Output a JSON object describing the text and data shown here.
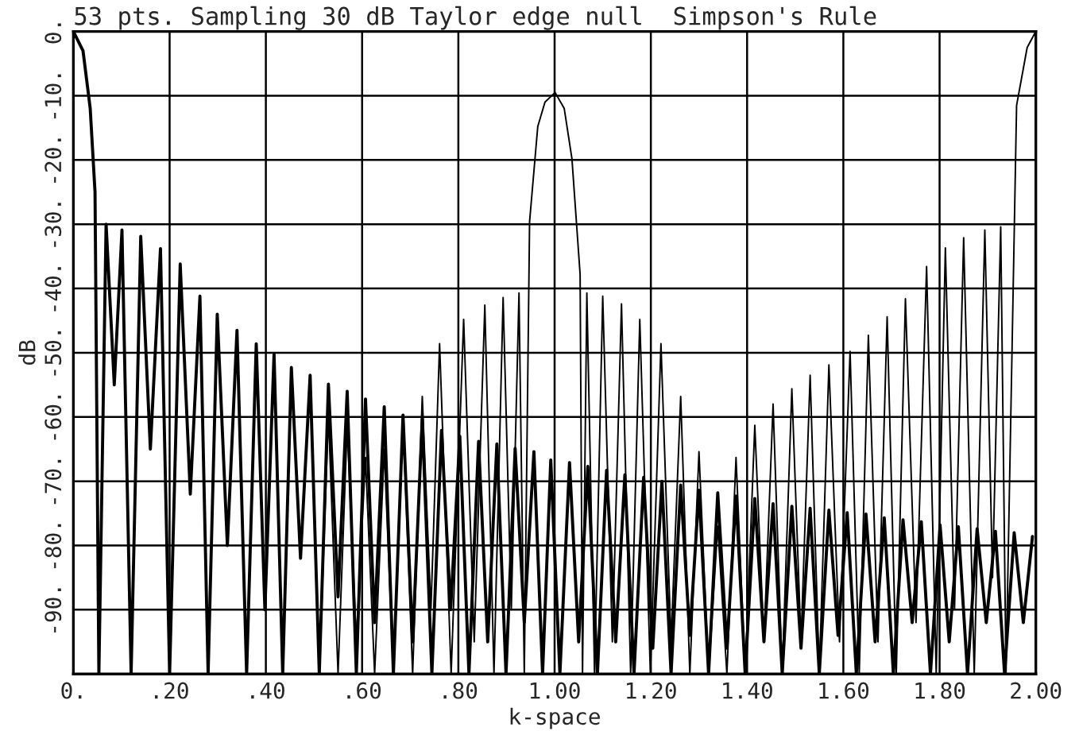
{
  "chart_data": {
    "type": "line",
    "title": "53 pts. Sampling 30 dB Taylor edge null  Simpson's Rule",
    "xlabel": "k-space",
    "ylabel": "dB",
    "xlim": [
      0,
      2
    ],
    "ylim": [
      -100,
      0
    ],
    "xticks": [
      {
        "value": 0,
        "label": "0."
      },
      {
        "value": 0.2,
        "label": ".20"
      },
      {
        "value": 0.4,
        "label": ".40"
      },
      {
        "value": 0.6,
        "label": ".60"
      },
      {
        "value": 0.8,
        "label": ".80"
      },
      {
        "value": 1.0,
        "label": "1.00"
      },
      {
        "value": 1.2,
        "label": "1.20"
      },
      {
        "value": 1.4,
        "label": "1.40"
      },
      {
        "value": 1.6,
        "label": "1.60"
      },
      {
        "value": 1.8,
        "label": "1.80"
      },
      {
        "value": 2.0,
        "label": "2.00"
      }
    ],
    "yticks": [
      {
        "value": 0,
        "label": "0."
      },
      {
        "value": -10,
        "label": "-10."
      },
      {
        "value": -20,
        "label": "-20."
      },
      {
        "value": -30,
        "label": "-30."
      },
      {
        "value": -40,
        "label": "-40."
      },
      {
        "value": -50,
        "label": "-50."
      },
      {
        "value": -60,
        "label": "-60."
      },
      {
        "value": -70,
        "label": "-70."
      },
      {
        "value": -80,
        "label": "-80."
      },
      {
        "value": -90,
        "label": "-90."
      },
      {
        "value": -100,
        "label": null
      }
    ],
    "grid": true,
    "marker": "none",
    "line_style": "solid",
    "legend": false,
    "series": [
      {
        "color": "#000000",
        "x": [
          0,
          0.02,
          0.035,
          0.045,
          0.053,
          0.068,
          0.085,
          0.101,
          0.12,
          0.14,
          0.16,
          0.181,
          0.2,
          0.222,
          0.243,
          0.263,
          0.28,
          0.299,
          0.32,
          0.34,
          0.36,
          0.38,
          0.398,
          0.417,
          0.435,
          0.453,
          0.472,
          0.492,
          0.511,
          0.53,
          0.55,
          0.569,
          0.588,
          0.607,
          0.626,
          0.646,
          0.665,
          0.685,
          0.705,
          0.725,
          0.745,
          0.765,
          0.784,
          0.803,
          0.822,
          0.842,
          0.861,
          0.88,
          0.899,
          0.918,
          0.937,
          0.957,
          0.975,
          0.992,
          1.011,
          1.031,
          1.05,
          1.069,
          1.089,
          1.108,
          1.127,
          1.146,
          1.165,
          1.185,
          1.204,
          1.223,
          1.242,
          1.262,
          1.281,
          1.3,
          1.32,
          1.339,
          1.358,
          1.377,
          1.396,
          1.416,
          1.435,
          1.454,
          1.473,
          1.493,
          1.512,
          1.531,
          1.55,
          1.57,
          1.589,
          1.608,
          1.627,
          1.647,
          1.666,
          1.685,
          1.704,
          1.724,
          1.743,
          1.762,
          1.781,
          1.801,
          1.82,
          1.839,
          1.858,
          1.878,
          1.897,
          1.916,
          1.935,
          1.955,
          1.974,
          1.993
        ],
        "values": [
          0,
          -3,
          -12,
          -25,
          -100,
          -30.0,
          -55,
          -30.9,
          -100,
          -31.9,
          -65,
          -33.8,
          -100,
          -36.2,
          -72,
          -41.2,
          -100,
          -44.0,
          -80,
          -46.5,
          -100,
          -48.6,
          -90,
          -50.2,
          -100,
          -52.3,
          -82,
          -53.5,
          -100,
          -54.9,
          -88,
          -56.0,
          -100,
          -57.2,
          -92,
          -58.4,
          -100,
          -59.7,
          -95,
          -60.3,
          -100,
          -62.1,
          -90,
          -63.0,
          -100,
          -63.8,
          -95,
          -64.2,
          -100,
          -64.9,
          -92,
          -65.4,
          -100,
          -66.7,
          -100,
          -67.1,
          -95,
          -67.7,
          -100,
          -68.3,
          -95,
          -69.0,
          -100,
          -69.4,
          -96,
          -70.0,
          -100,
          -70.6,
          -94,
          -71.4,
          -100,
          -71.8,
          -96,
          -72.3,
          -100,
          -72.7,
          -95,
          -73.5,
          -100,
          -73.9,
          -96,
          -74.2,
          -100,
          -74.5,
          -94,
          -74.9,
          -100,
          -75.1,
          -95,
          -75.7,
          -100,
          -76.0,
          -92,
          -76.3,
          -100,
          -76.8,
          -95,
          -77.1,
          -100,
          -77.4,
          -92,
          -77.8,
          -100,
          -78.0,
          -92,
          -78.6
        ]
      },
      {
        "color": "#000000",
        "x": [
          0.511,
          0.53,
          0.55,
          0.569,
          0.588,
          0.607,
          0.626,
          0.646,
          0.665,
          0.685,
          0.705,
          0.725,
          0.743,
          0.761,
          0.785,
          0.811,
          0.833,
          0.855,
          0.874,
          0.893,
          0.91,
          0.926,
          0.937,
          0.948,
          0.965,
          0.98,
          1.001,
          1.02,
          1.036,
          1.053,
          1.058,
          1.067,
          1.083,
          1.1,
          1.12,
          1.139,
          1.158,
          1.177,
          1.199,
          1.221,
          1.242,
          1.262,
          1.281,
          1.3,
          1.32,
          1.339,
          1.358,
          1.377,
          1.396,
          1.416,
          1.435,
          1.454,
          1.473,
          1.493,
          1.512,
          1.531,
          1.55,
          1.57,
          1.592,
          1.614,
          1.633,
          1.652,
          1.672,
          1.691,
          1.71,
          1.729,
          1.751,
          1.773,
          1.793,
          1.812,
          1.831,
          1.85,
          1.872,
          1.894,
          1.91,
          1.927,
          1.938,
          1.96,
          1.982,
          2.0
        ],
        "values": [
          -100,
          -59.7,
          -100,
          -61.3,
          -95,
          -66.3,
          -100,
          -65.0,
          -100,
          -60.1,
          -100,
          -56.8,
          -90,
          -48.6,
          -100,
          -44.8,
          -95,
          -42.6,
          -100,
          -41.4,
          -90,
          -40.7,
          -100,
          -29.6,
          -14.8,
          -11,
          -9.5,
          -12,
          -19.8,
          -37.8,
          -100,
          -40.7,
          -100,
          -41.2,
          -95,
          -42.4,
          -100,
          -44.8,
          -100,
          -48.6,
          -95,
          -56.8,
          -100,
          -65.4,
          -100,
          -77,
          -100,
          -66.3,
          -100,
          -61.3,
          -95,
          -58.0,
          -100,
          -55.6,
          -95,
          -53.5,
          -100,
          -51.9,
          -95,
          -49.8,
          -100,
          -47.3,
          -95,
          -44.4,
          -100,
          -41.6,
          -92,
          -36.6,
          -100,
          -33.7,
          -90,
          -32.1,
          -100,
          -30.9,
          -85,
          -30.4,
          -100,
          -11.5,
          -2.5,
          0
        ]
      }
    ]
  }
}
